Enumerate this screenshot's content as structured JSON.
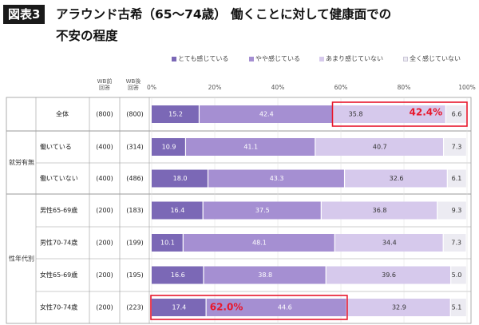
{
  "header": {
    "badge": "図表3",
    "title_line1": "アラウンド古希（65〜74歳） 働くことに対して健康面での",
    "title_line2": "不安の程度"
  },
  "columns": {
    "wb_before": "WB前\n回答",
    "wb_after": "WB後\n回答"
  },
  "groups": {
    "employment": "就労有無",
    "sex_age": "性年代別"
  },
  "colors": {
    "very": "#7b68b6",
    "somewhat": "#a58fd2",
    "not_much": "#d6c9ec",
    "not_at_all": "#ecebf2",
    "highlight": "#e8172c"
  },
  "annotations": {
    "total_not_anxious": "42.4%",
    "female70_anxious": "62.0%"
  },
  "chart_data": {
    "type": "bar",
    "orientation": "horizontal",
    "stacked": true,
    "xlim": [
      0,
      100
    ],
    "xticks": [
      "0%",
      "20%",
      "40%",
      "60%",
      "80%",
      "100%"
    ],
    "legend": [
      "とても感じている",
      "やや感じている",
      "あまり感じていない",
      "全く感じていない"
    ],
    "legend_position": "top-right",
    "categories": [
      "全体",
      "働いている",
      "働いていない",
      "男性65-69歳",
      "男性70-74歳",
      "女性65-69歳",
      "女性70-74歳"
    ],
    "n_before": [
      "(800)",
      "(400)",
      "(400)",
      "(200)",
      "(200)",
      "(200)",
      "(200)"
    ],
    "n_after": [
      "(800)",
      "(314)",
      "(486)",
      "(183)",
      "(199)",
      "(195)",
      "(223)"
    ],
    "series": [
      {
        "name": "とても感じている",
        "values": [
          15.2,
          10.9,
          18.0,
          16.4,
          10.1,
          16.6,
          17.4
        ]
      },
      {
        "name": "やや感じている",
        "values": [
          42.4,
          41.1,
          43.3,
          37.5,
          48.1,
          38.8,
          44.6
        ]
      },
      {
        "name": "あまり感じていない",
        "values": [
          35.8,
          40.7,
          32.6,
          36.8,
          34.4,
          39.6,
          32.9
        ]
      },
      {
        "name": "全く感じていない",
        "values": [
          6.6,
          7.3,
          6.1,
          9.3,
          7.3,
          5.0,
          5.1
        ]
      }
    ]
  }
}
